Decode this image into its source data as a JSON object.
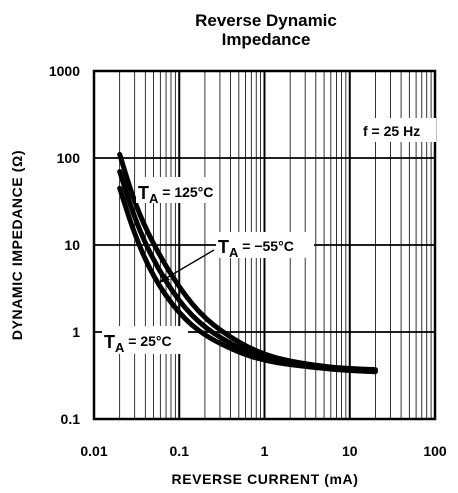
{
  "chart_data": {
    "type": "line",
    "title_line1": "Reverse Dynamic",
    "title_line2": "Impedance",
    "xlabel": "REVERSE CURRENT (mA)",
    "ylabel": "DYNAMIC IMPEDANCE (Ω)",
    "x_scale": "log",
    "y_scale": "log",
    "xlim": [
      0.01,
      100
    ],
    "ylim": [
      0.1,
      1000
    ],
    "x_ticks": [
      "0.01",
      "0.1",
      "1",
      "10",
      "100"
    ],
    "y_ticks": [
      "1000",
      "100",
      "10",
      "1",
      "0.1"
    ],
    "grid": true,
    "condition": "f = 25 Hz",
    "annotations": {
      "t125": {
        "t": "T",
        "sub": "A",
        "rest": " = 125°C"
      },
      "tm55": {
        "t": "T",
        "sub": "A",
        "rest": " = −55°C"
      },
      "t25": {
        "t": "T",
        "sub": "A",
        "rest": " = 25°C"
      }
    },
    "series": [
      {
        "x": [
          0.02,
          0.03,
          0.05,
          0.1,
          0.2,
          0.5,
          1,
          2,
          5,
          10,
          20
        ],
        "y": [
          110,
          30,
          10,
          3.2,
          1.4,
          0.75,
          0.55,
          0.46,
          0.4,
          0.38,
          0.37
        ]
      },
      {
        "x": [
          0.02,
          0.03,
          0.05,
          0.1,
          0.2,
          0.5,
          1,
          2,
          5,
          10,
          20
        ],
        "y": [
          70,
          20,
          6.5,
          2.2,
          1.1,
          0.65,
          0.5,
          0.44,
          0.39,
          0.37,
          0.36
        ]
      },
      {
        "x": [
          0.02,
          0.03,
          0.05,
          0.1,
          0.2,
          0.5,
          1,
          2,
          5,
          10,
          20
        ],
        "y": [
          45,
          13,
          4.2,
          1.6,
          0.9,
          0.58,
          0.47,
          0.42,
          0.38,
          0.36,
          0.35
        ]
      }
    ]
  }
}
